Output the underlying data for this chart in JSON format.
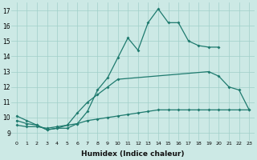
{
  "xlabel": "Humidex (Indice chaleur)",
  "xlim": [
    -0.5,
    23.5
  ],
  "ylim": [
    8.5,
    17.5
  ],
  "yticks": [
    9,
    10,
    11,
    12,
    13,
    14,
    15,
    16,
    17
  ],
  "xticks": [
    0,
    1,
    2,
    3,
    4,
    5,
    6,
    7,
    8,
    9,
    10,
    11,
    12,
    13,
    14,
    15,
    16,
    17,
    18,
    19,
    20,
    21,
    22,
    23
  ],
  "bg_color": "#cce9e5",
  "grid_color": "#a0cfc9",
  "line_color": "#1e7a6e",
  "line1_x": [
    0,
    1,
    2,
    3,
    4,
    5,
    6,
    7,
    8,
    9,
    10,
    11,
    12,
    13,
    14,
    15,
    16,
    17,
    18,
    19,
    20
  ],
  "line1_y": [
    10.1,
    9.8,
    9.5,
    9.2,
    9.3,
    9.3,
    9.6,
    10.4,
    11.8,
    12.6,
    13.9,
    15.2,
    14.4,
    16.2,
    17.1,
    16.2,
    16.2,
    15.0,
    14.7,
    14.6,
    14.6
  ],
  "line2_x": [
    0,
    1,
    2,
    3,
    4,
    5,
    6,
    7,
    8,
    9,
    10,
    19,
    20,
    21,
    22,
    23
  ],
  "line2_y": [
    9.8,
    9.6,
    9.5,
    9.2,
    9.3,
    9.5,
    10.3,
    11.0,
    11.5,
    12.0,
    12.5,
    13.0,
    12.7,
    12.0,
    11.8,
    10.5
  ],
  "line3_x": [
    0,
    1,
    2,
    3,
    4,
    5,
    6,
    7,
    8,
    9,
    10,
    11,
    12,
    13,
    14,
    15,
    16,
    17,
    18,
    19,
    20,
    21,
    22,
    23
  ],
  "line3_y": [
    9.5,
    9.4,
    9.4,
    9.3,
    9.4,
    9.5,
    9.6,
    9.8,
    9.9,
    10.0,
    10.1,
    10.2,
    10.3,
    10.4,
    10.5,
    10.5,
    10.5,
    10.5,
    10.5,
    10.5,
    10.5,
    10.5,
    10.5,
    10.5
  ]
}
